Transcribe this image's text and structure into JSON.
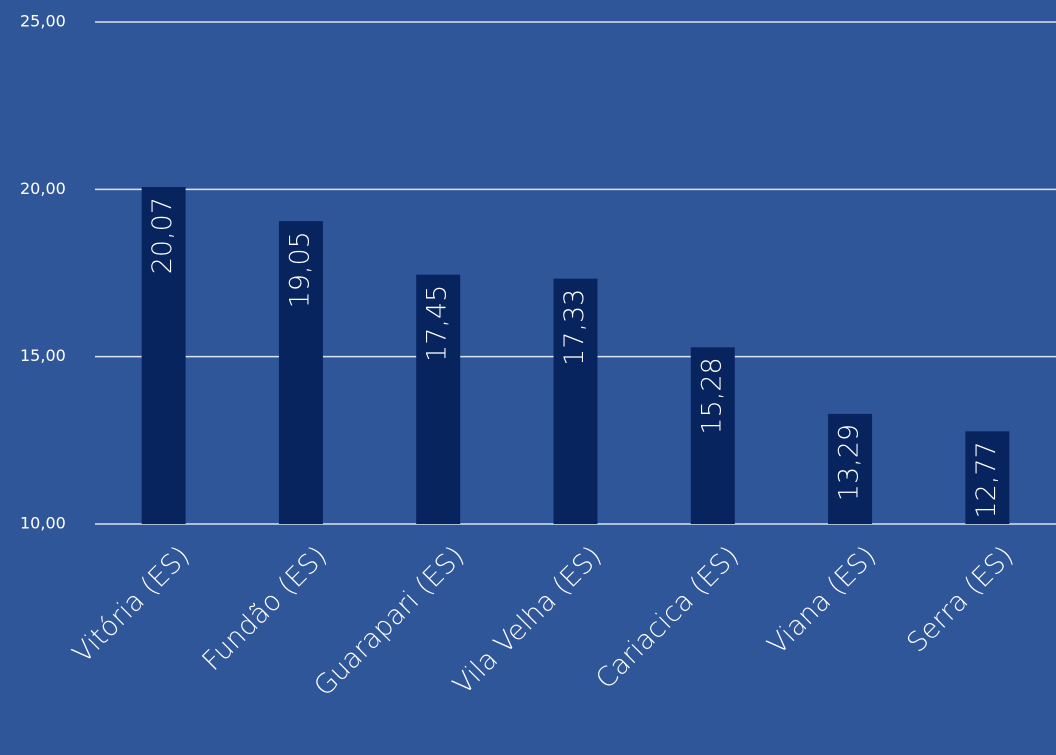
{
  "chart_data": {
    "type": "bar",
    "categories": [
      "Vitória (ES)",
      "Fundão (ES)",
      "Guarapari (ES)",
      "Vila Velha (ES)",
      "Cariacica (ES)",
      "Viana (ES)",
      "Serra (ES)"
    ],
    "values": [
      20.07,
      19.05,
      17.45,
      17.33,
      15.28,
      13.29,
      12.77
    ],
    "value_labels": [
      "20,07",
      "19,05",
      "17,45",
      "17,33",
      "15,28",
      "13,29",
      "12,77"
    ],
    "color": "#07245f",
    "ylim": [
      10,
      25
    ],
    "yticks": [
      {
        "value": 10,
        "label": "10,00"
      },
      {
        "value": 15,
        "label": "15,00"
      },
      {
        "value": 20,
        "label": "20,00"
      },
      {
        "value": 25,
        "label": "25,00"
      }
    ],
    "grid": true
  }
}
